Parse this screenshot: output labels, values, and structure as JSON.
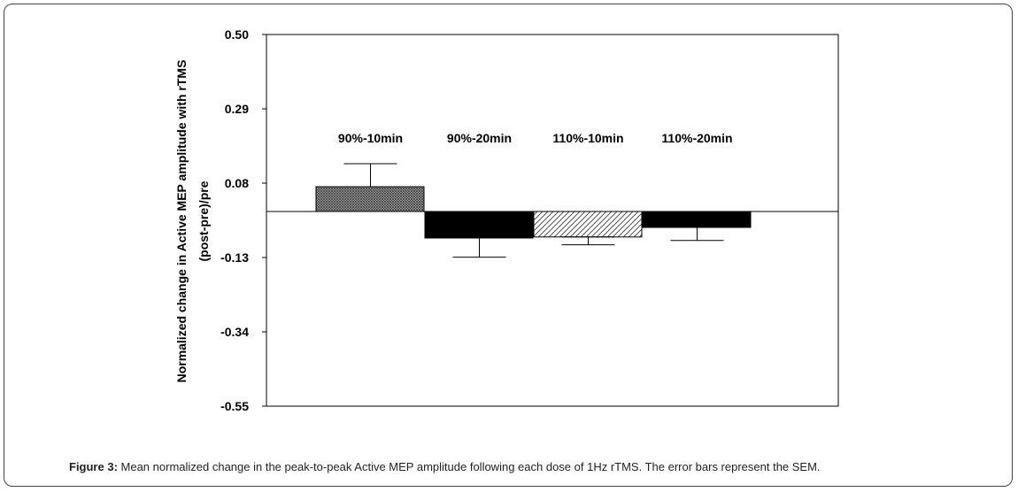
{
  "chart_data": {
    "type": "bar",
    "categories": [
      "90%-10min",
      "90%-20min",
      "110%-10min",
      "110%-20min"
    ],
    "values": [
      0.07,
      -0.075,
      -0.072,
      -0.045
    ],
    "error_plus": [
      0.065,
      0.0,
      0.0,
      0.0
    ],
    "error_minus": [
      0.0,
      0.054,
      0.022,
      0.037
    ],
    "error_direction": [
      "up",
      "down",
      "down",
      "down"
    ],
    "patterns": [
      "crosshatch",
      "solid-black",
      "diagonal-hatch",
      "solid-black"
    ],
    "ylabel_line1": "Normalized change in Active MEP amplitude with rTMS",
    "ylabel_line2": "(post-pre)/pre",
    "yticks": [
      0.5,
      0.29,
      0.08,
      -0.13,
      -0.34,
      -0.55
    ],
    "ytick_labels": [
      "0.50",
      "0.29",
      "0.08",
      "-0.13",
      "-0.34",
      "-0.55"
    ],
    "ylim": [
      -0.55,
      0.5
    ],
    "grid": false,
    "legend": "none"
  },
  "caption": {
    "label": "Figure 3:",
    "text": " Mean normalized change in the peak-to-peak Active MEP amplitude following each dose of 1Hz rTMS. The error bars represent the SEM."
  }
}
